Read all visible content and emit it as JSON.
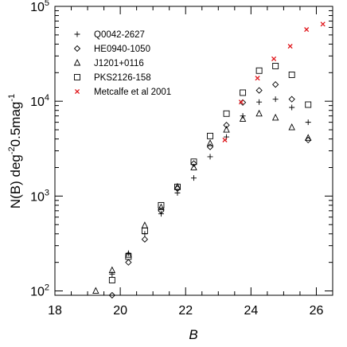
{
  "chart_data": {
    "type": "scatter",
    "xlabel": "B",
    "ylabel_main": "N(B) deg",
    "ylabel_exp1": "-2",
    "ylabel_mid": "0.5mag",
    "ylabel_exp2": "-1",
    "xlim": [
      18,
      26.5
    ],
    "ylim": [
      90,
      100000
    ],
    "yscale": "log",
    "grid": false,
    "legend_position": "top-left",
    "x_ticks": [
      {
        "value": 18,
        "label": "18"
      },
      {
        "value": 20,
        "label": "20"
      },
      {
        "value": 22,
        "label": "22"
      },
      {
        "value": 24,
        "label": "24"
      },
      {
        "value": 26,
        "label": "26"
      }
    ],
    "y_ticks": [
      {
        "value": 100,
        "base": "10",
        "exp": "2"
      },
      {
        "value": 1000,
        "base": "10",
        "exp": "3"
      },
      {
        "value": 10000,
        "base": "10",
        "exp": "4"
      },
      {
        "value": 100000,
        "base": "10",
        "exp": "5"
      }
    ],
    "series": [
      {
        "name": "Q0042-2627",
        "marker": "plus",
        "color": "#000000",
        "points": [
          [
            19.75,
            150
          ],
          [
            20.25,
            250
          ],
          [
            20.75,
            400
          ],
          [
            21.25,
            650
          ],
          [
            21.75,
            1080
          ],
          [
            22.25,
            1550
          ],
          [
            22.75,
            2600
          ],
          [
            23.25,
            4200
          ],
          [
            23.75,
            7000
          ],
          [
            24.25,
            9800
          ],
          [
            24.75,
            10500
          ],
          [
            25.25,
            8600
          ],
          [
            25.75,
            6000
          ]
        ]
      },
      {
        "name": "HE0940-1050",
        "marker": "diamond",
        "color": "#000000",
        "points": [
          [
            19.75,
            90
          ],
          [
            20.25,
            200
          ],
          [
            20.75,
            350
          ],
          [
            21.25,
            700
          ],
          [
            21.75,
            1200
          ],
          [
            22.25,
            2200
          ],
          [
            22.75,
            3300
          ],
          [
            23.25,
            5600
          ],
          [
            23.75,
            9700
          ],
          [
            24.25,
            13000
          ],
          [
            24.75,
            15000
          ],
          [
            25.25,
            10500
          ],
          [
            25.75,
            3900
          ]
        ]
      },
      {
        "name": "J1201+0116",
        "marker": "triangle",
        "color": "#000000",
        "points": [
          [
            19.25,
            100
          ],
          [
            19.75,
            165
          ],
          [
            20.25,
            240
          ],
          [
            20.75,
            490
          ],
          [
            21.25,
            760
          ],
          [
            21.75,
            1250
          ],
          [
            22.25,
            2000
          ],
          [
            22.75,
            3600
          ],
          [
            23.25,
            5000
          ],
          [
            23.75,
            6500
          ],
          [
            24.25,
            7400
          ],
          [
            24.75,
            6700
          ],
          [
            25.25,
            5300
          ],
          [
            25.75,
            4100
          ]
        ]
      },
      {
        "name": "PKS2126-158",
        "marker": "square",
        "color": "#000000",
        "points": [
          [
            19.75,
            130
          ],
          [
            20.25,
            230
          ],
          [
            20.75,
            430
          ],
          [
            21.25,
            800
          ],
          [
            21.75,
            1250
          ],
          [
            22.25,
            2300
          ],
          [
            22.75,
            4300
          ],
          [
            23.25,
            7400
          ],
          [
            23.75,
            12300
          ],
          [
            24.25,
            21000
          ],
          [
            24.75,
            23500
          ],
          [
            25.25,
            19000
          ],
          [
            25.75,
            9200
          ]
        ]
      },
      {
        "name": "Metcalfe et al 2001",
        "marker": "cross",
        "color": "#e0161b",
        "points": [
          [
            23.2,
            3900
          ],
          [
            23.7,
            9800
          ],
          [
            24.2,
            17500
          ],
          [
            24.7,
            28000
          ],
          [
            25.2,
            38000
          ],
          [
            25.7,
            57000
          ],
          [
            26.2,
            65000
          ]
        ]
      }
    ]
  }
}
